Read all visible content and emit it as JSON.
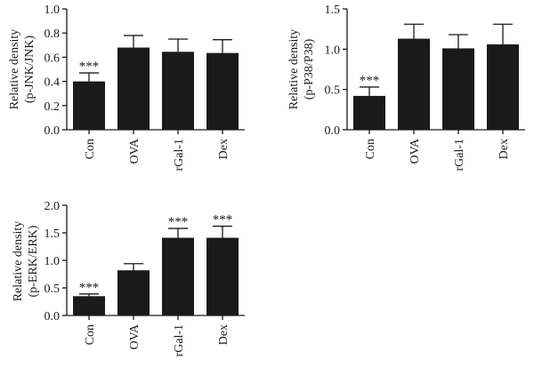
{
  "chart_data": [
    {
      "type": "bar",
      "ylabel_lines": [
        "Relative density",
        "(p-JNK/JNK)"
      ],
      "categories": [
        "Con",
        "OVA",
        "rGal-1",
        "Dex"
      ],
      "values": [
        0.4,
        0.68,
        0.645,
        0.635
      ],
      "errors": [
        0.07,
        0.1,
        0.105,
        0.11
      ],
      "significance": [
        "***",
        "",
        "",
        ""
      ],
      "ylim": [
        0,
        1.0
      ],
      "yticks": [
        "0.0",
        "0.2",
        "0.4",
        "0.6",
        "0.8",
        "1.0"
      ]
    },
    {
      "type": "bar",
      "ylabel_lines": [
        "Relative density",
        "(p-P38/P38)"
      ],
      "categories": [
        "Con",
        "OVA",
        "rGal-1",
        "Dex"
      ],
      "values": [
        0.42,
        1.13,
        1.01,
        1.06
      ],
      "errors": [
        0.11,
        0.18,
        0.17,
        0.25
      ],
      "significance": [
        "***",
        "",
        "",
        ""
      ],
      "ylim": [
        0,
        1.5
      ],
      "yticks": [
        "0.0",
        "0.5",
        "1.0",
        "1.5"
      ]
    },
    {
      "type": "bar",
      "ylabel_lines": [
        "Relative density",
        "(p-ERK/ERK)"
      ],
      "categories": [
        "Con",
        "OVA",
        "rGal-1",
        "Dex"
      ],
      "values": [
        0.35,
        0.82,
        1.41,
        1.41
      ],
      "errors": [
        0.04,
        0.12,
        0.17,
        0.21
      ],
      "significance": [
        "***",
        "",
        "***",
        "***"
      ],
      "ylim": [
        0,
        2.0
      ],
      "yticks": [
        "0.0",
        "0.5",
        "1.0",
        "1.5",
        "2.0"
      ]
    }
  ]
}
